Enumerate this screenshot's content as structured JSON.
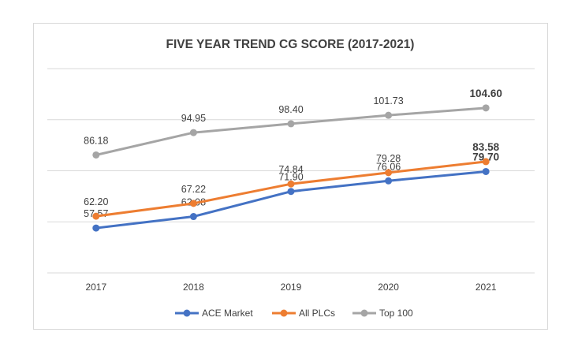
{
  "chart_data": {
    "type": "line",
    "title": "FIVE YEAR TREND CG SCORE (2017-2021)",
    "categories": [
      "2017",
      "2018",
      "2019",
      "2020",
      "2021"
    ],
    "ylim": [
      40,
      120
    ],
    "grid": true,
    "legend_position": "bottom",
    "series": [
      {
        "name": "ACE Market",
        "color": "#4472c4",
        "values": [
          57.57,
          62.08,
          71.9,
          76.06,
          79.7
        ],
        "labels": [
          "57.57",
          "62.08",
          "71.90",
          "76.06",
          "79.70"
        ]
      },
      {
        "name": "All PLCs",
        "color": "#ed7d31",
        "values": [
          62.2,
          67.22,
          74.84,
          79.28,
          83.58
        ],
        "labels": [
          "62.20",
          "67.22",
          "74.84",
          "79.28",
          "83.58"
        ]
      },
      {
        "name": "Top 100",
        "color": "#a5a5a5",
        "values": [
          86.18,
          94.95,
          98.4,
          101.73,
          104.6
        ],
        "labels": [
          "86.18",
          "94.95",
          "98.40",
          "101.73",
          "104.60"
        ]
      }
    ]
  }
}
